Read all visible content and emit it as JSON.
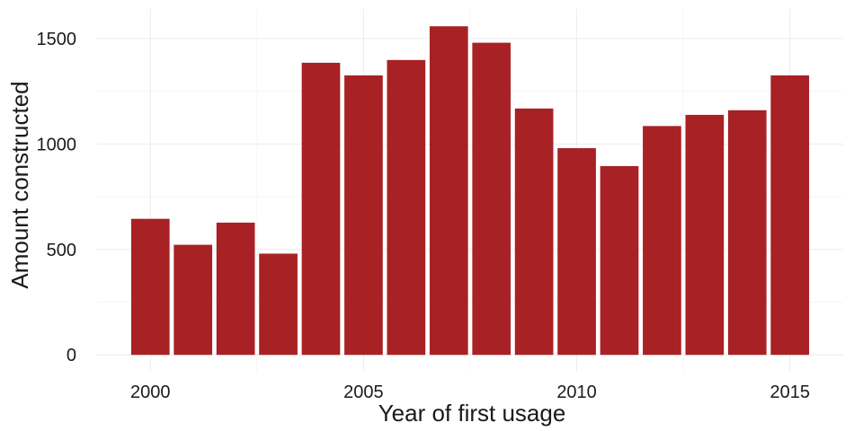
{
  "chart_data": {
    "type": "bar",
    "xlabel": "Year of first usage",
    "ylabel": "Amount constructed",
    "categories": [
      2000,
      2001,
      2002,
      2003,
      2004,
      2005,
      2006,
      2007,
      2008,
      2009,
      2010,
      2011,
      2012,
      2013,
      2014,
      2015
    ],
    "values": [
      645,
      522,
      627,
      480,
      1385,
      1325,
      1398,
      1558,
      1480,
      1168,
      980,
      895,
      1085,
      1138,
      1160,
      1325
    ],
    "xticks": [
      2000,
      2005,
      2010,
      2015
    ],
    "yticks": [
      0,
      500,
      1000,
      1500
    ],
    "xlim": [
      1998.75,
      2016.25
    ],
    "ylim": [
      -80,
      1640
    ],
    "bar_color": "#A82124",
    "grid": true,
    "legend": "none"
  }
}
